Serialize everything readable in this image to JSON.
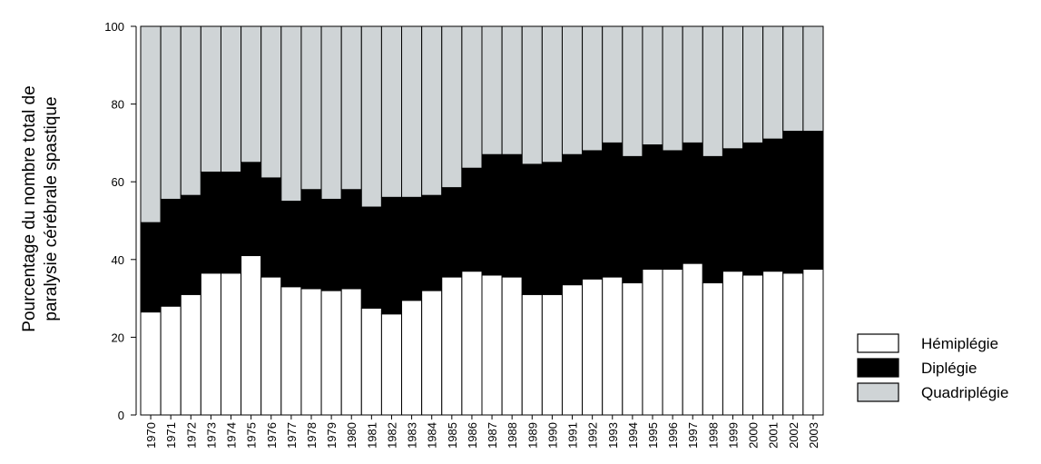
{
  "chart_data": {
    "type": "stacked_bar",
    "y_label": [
      "Pourcentage du nombre total de",
      "paralysie cérébrale spastique"
    ],
    "categories": [
      "1970",
      "1971",
      "1972",
      "1973",
      "1974",
      "1975",
      "1976",
      "1977",
      "1978",
      "1979",
      "1980",
      "1981",
      "1982",
      "1983",
      "1984",
      "1985",
      "1986",
      "1987",
      "1988",
      "1989",
      "1990",
      "1991",
      "1992",
      "1993",
      "1994",
      "1995",
      "1996",
      "1997",
      "1998",
      "1999",
      "2000",
      "2001",
      "2002",
      "2003"
    ],
    "series": [
      {
        "name": "Hémiplégie",
        "color": "#ffffff",
        "values": [
          26.5,
          28,
          31,
          36.5,
          36.5,
          41,
          35.5,
          33,
          32.5,
          32,
          32.5,
          27.5,
          26,
          29.5,
          32,
          35.5,
          37,
          36,
          35.5,
          31,
          31,
          33.5,
          35,
          35.5,
          34,
          37.5,
          37.5,
          39,
          34,
          37,
          36,
          37,
          36.5,
          37.5
        ]
      },
      {
        "name": "Diplégie",
        "color": "#000000",
        "values": [
          23,
          27.5,
          25.5,
          26,
          26,
          24,
          25.5,
          22,
          25.5,
          23.5,
          25.5,
          26,
          30,
          26.5,
          24.5,
          23,
          26.5,
          31,
          31.5,
          33.5,
          34,
          33.5,
          33,
          34.5,
          32.5,
          32,
          30.5,
          31,
          32.5,
          31.5,
          34,
          34,
          36.5,
          35.5
        ]
      },
      {
        "name": "Quadriplégie",
        "color": "#cfd4d6",
        "values": [
          50.5,
          44.5,
          43.5,
          37.5,
          37.5,
          35,
          39,
          45,
          42,
          44.5,
          42,
          46.5,
          44,
          44,
          43.5,
          41.5,
          36.5,
          33,
          33,
          35.5,
          35,
          33,
          32,
          30,
          33.5,
          30.5,
          32,
          30,
          33.5,
          31.5,
          30,
          29,
          27,
          27
        ]
      }
    ],
    "ylim": [
      0,
      100
    ],
    "yticks": [
      0,
      20,
      40,
      60,
      80,
      100
    ],
    "legend": "right"
  }
}
